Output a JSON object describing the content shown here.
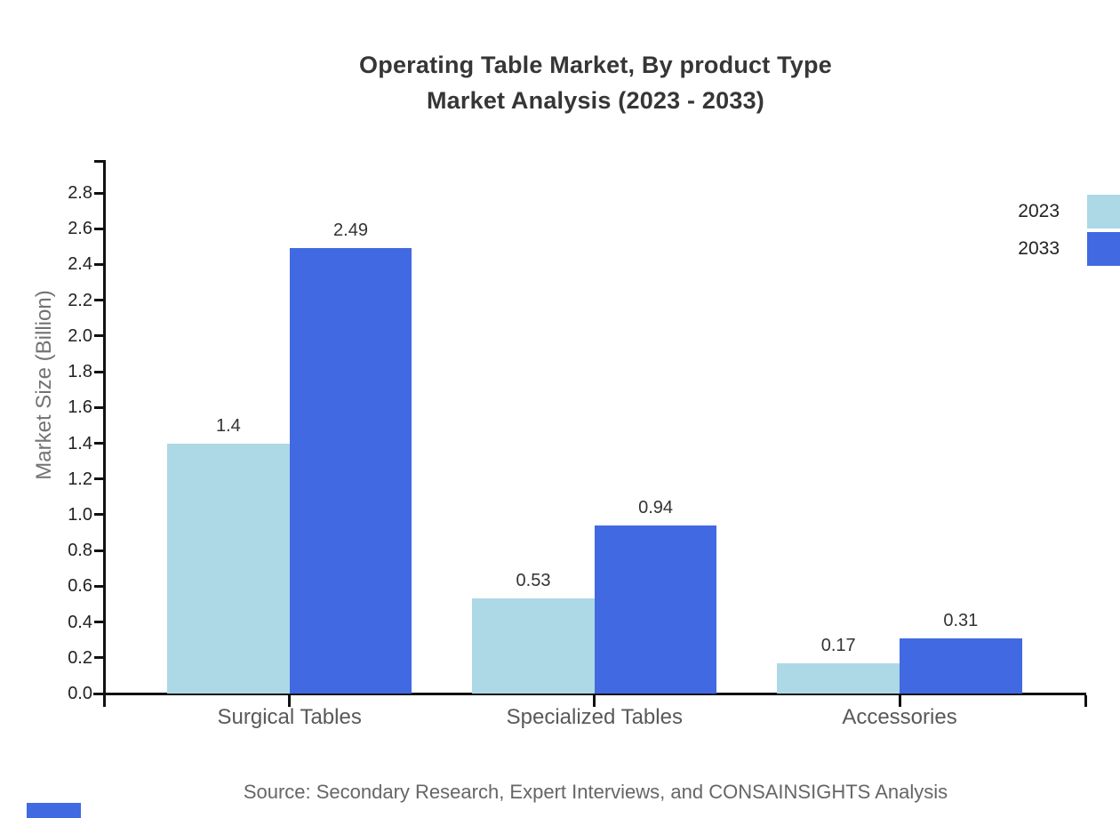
{
  "title": {
    "line1": "Operating Table Market, By product Type",
    "line2": "Market Analysis (2023 - 2033)"
  },
  "source": "Source: Secondary Research, Expert Interviews, and CONSAINSIGHTS Analysis",
  "chart_data": {
    "type": "bar",
    "title": "Operating Table Market, By product Type Market Analysis (2023 - 2033)",
    "categories": [
      "Surgical Tables",
      "Specialized Tables",
      "Accessories"
    ],
    "series": [
      {
        "name": "2023",
        "color": "#add8e6",
        "values": [
          1.4,
          0.53,
          0.17
        ],
        "labels": [
          "1.4",
          "0.53",
          "0.17"
        ]
      },
      {
        "name": "2033",
        "color": "#4169e1",
        "values": [
          2.49,
          0.94,
          0.31
        ],
        "labels": [
          "2.49",
          "0.94",
          "0.31"
        ]
      }
    ],
    "xlabel": "",
    "ylabel": "Market Size (Billion)",
    "ylim": [
      0.0,
      2.8
    ],
    "ytick_step": 0.2,
    "yticks": [
      "0.0",
      "0.2",
      "0.4",
      "0.6",
      "0.8",
      "1.0",
      "1.2",
      "1.4",
      "1.6",
      "1.8",
      "2.0",
      "2.2",
      "2.4",
      "2.6",
      "2.8"
    ],
    "grid": false,
    "legend_position": "upper-right"
  },
  "colors": {
    "series_2023": "#add8e6",
    "series_2033": "#4169e1",
    "axis": "#111111",
    "brand_mark": "#4169e1"
  }
}
